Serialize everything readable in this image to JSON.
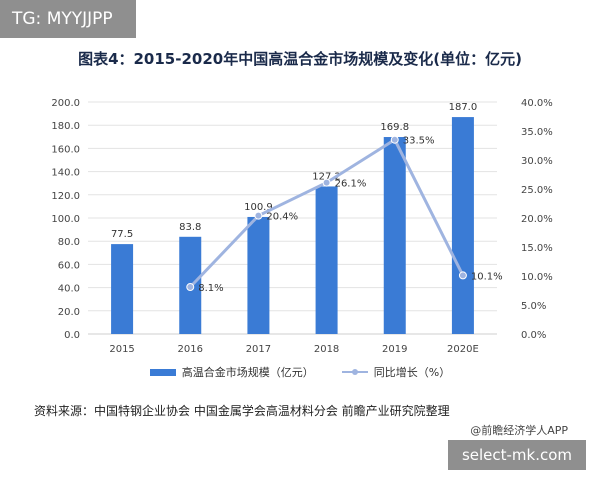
{
  "watermark_top": "TG: MYYJJPP",
  "watermark_bottom": "select-mk.com",
  "title": "图表4：2015-2020年中国高温合金市场规模及变化(单位：亿元)",
  "source": "资料来源：中国特钢企业协会 中国金属学会高温材料分会 前瞻产业研究院整理",
  "app_credit": "@前瞻经济学人APP",
  "colors": {
    "bar": "#3a7bd5",
    "line": "#9fb4e0"
  },
  "chart_data": {
    "type": "bar",
    "categories": [
      "2015",
      "2016",
      "2017",
      "2018",
      "2019",
      "2020E"
    ],
    "series": [
      {
        "name": "高温合金市场规模（亿元）",
        "type": "bar",
        "axis": "left",
        "values": [
          77.5,
          83.8,
          100.9,
          127.2,
          169.8,
          187.0
        ],
        "labels": [
          "77.5",
          "83.8",
          "100.9",
          "127.2",
          "169.8",
          "187.0"
        ]
      },
      {
        "name": "同比增长（%）",
        "type": "line",
        "axis": "right",
        "values": [
          null,
          8.1,
          20.4,
          26.1,
          33.5,
          10.1
        ],
        "labels": [
          "",
          "8.1%",
          "20.4%",
          "26.1%",
          "33.5%",
          "10.1%"
        ]
      }
    ],
    "ylim_left": [
      0,
      200
    ],
    "ylim_right": [
      0,
      40
    ],
    "yticks_left": [
      "0.0",
      "20.0",
      "40.0",
      "60.0",
      "80.0",
      "100.0",
      "120.0",
      "140.0",
      "160.0",
      "180.0",
      "200.0"
    ],
    "yticks_right": [
      "0.0%",
      "5.0%",
      "10.0%",
      "15.0%",
      "20.0%",
      "25.0%",
      "30.0%",
      "35.0%",
      "40.0%"
    ],
    "grid": true,
    "legend_position": "bottom"
  }
}
